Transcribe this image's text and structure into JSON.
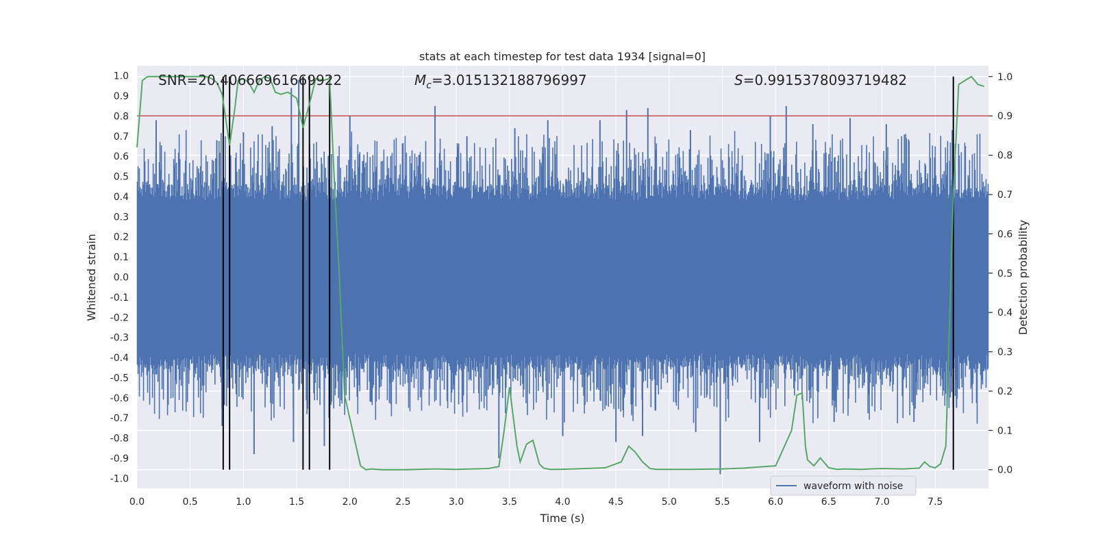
{
  "chart_data": {
    "type": "line",
    "title": "stats at each timestep for test data 1934 [signal=0]",
    "xlabel": "Time (s)",
    "ylabel_left": "Whitened strain",
    "ylabel_right": "Detection probability",
    "xlim": [
      0.0,
      8.0
    ],
    "ylim_left": [
      -1.05,
      1.05
    ],
    "ylim_right": [
      -0.0475,
      1.0275
    ],
    "x_ticks": [
      "0.0",
      "0.5",
      "1.0",
      "1.5",
      "2.0",
      "2.5",
      "3.0",
      "3.5",
      "4.0",
      "4.5",
      "5.0",
      "5.5",
      "6.0",
      "6.5",
      "7.0",
      "7.5"
    ],
    "x_tick_values": [
      0.0,
      0.5,
      1.0,
      1.5,
      2.0,
      2.5,
      3.0,
      3.5,
      4.0,
      4.5,
      5.0,
      5.5,
      6.0,
      6.5,
      7.0,
      7.5
    ],
    "y_left_ticks": [
      "1.0",
      "0.9",
      "0.8",
      "0.7",
      "0.6",
      "0.5",
      "0.4",
      "0.3",
      "0.2",
      "0.1",
      "0.0",
      "-0.1",
      "-0.2",
      "-0.3",
      "-0.4",
      "-0.5",
      "-0.6",
      "-0.7",
      "-0.8",
      "-0.9",
      "-1.0"
    ],
    "y_left_tick_values": [
      1.0,
      0.9,
      0.8,
      0.7,
      0.6,
      0.5,
      0.4,
      0.3,
      0.2,
      0.1,
      0.0,
      -0.1,
      -0.2,
      -0.3,
      -0.4,
      -0.5,
      -0.6,
      -0.7,
      -0.8,
      -0.9,
      -1.0
    ],
    "y_right_ticks": [
      "1.0",
      "0.9",
      "0.8",
      "0.7",
      "0.6",
      "0.5",
      "0.4",
      "0.3",
      "0.2",
      "0.1",
      "0.0"
    ],
    "y_right_tick_values": [
      1.0,
      0.9,
      0.8,
      0.7,
      0.6,
      0.5,
      0.4,
      0.3,
      0.2,
      0.1,
      0.0
    ],
    "grid": true,
    "annotations": {
      "snr": "SNR=20.40666961669922",
      "mc_symbol": "M",
      "mc_sub": "c",
      "mc_value": "=3.015132188796997",
      "s_symbol": "S",
      "s_value": "=0.9915378093719482"
    },
    "legend": {
      "entries": [
        "waveform with noise"
      ],
      "placement": "lower-right"
    },
    "threshold": {
      "value_right": 0.9,
      "color": "#c44e52"
    },
    "detection_markers_x": [
      0.81,
      0.87,
      1.56,
      1.62,
      1.81,
      7.67
    ],
    "waveform": {
      "color": "#4c72b0",
      "duration": 8.0,
      "core_amplitude": 0.38,
      "peaks": [
        {
          "t": 0.18,
          "v": 0.78
        },
        {
          "t": 0.46,
          "v": 0.58
        },
        {
          "t": 0.75,
          "v": 0.68
        },
        {
          "t": 0.8,
          "v": -0.74
        },
        {
          "t": 1.0,
          "v": 0.72
        },
        {
          "t": 1.1,
          "v": -0.88
        },
        {
          "t": 1.27,
          "v": 0.75
        },
        {
          "t": 1.45,
          "v": 0.94
        },
        {
          "t": 1.47,
          "v": -0.82
        },
        {
          "t": 1.52,
          "v": 0.98
        },
        {
          "t": 1.76,
          "v": -0.84
        },
        {
          "t": 2.0,
          "v": 0.8
        },
        {
          "t": 2.2,
          "v": -0.62
        },
        {
          "t": 2.8,
          "v": 0.85
        },
        {
          "t": 3.1,
          "v": 0.7
        },
        {
          "t": 3.4,
          "v": -0.9
        },
        {
          "t": 3.55,
          "v": 0.74
        },
        {
          "t": 3.86,
          "v": 0.78
        },
        {
          "t": 4.0,
          "v": -0.79
        },
        {
          "t": 4.35,
          "v": 0.78
        },
        {
          "t": 4.5,
          "v": -0.82
        },
        {
          "t": 4.6,
          "v": 0.83
        },
        {
          "t": 4.75,
          "v": -0.79
        },
        {
          "t": 4.8,
          "v": 0.84
        },
        {
          "t": 5.2,
          "v": 0.73
        },
        {
          "t": 5.25,
          "v": -0.77
        },
        {
          "t": 5.48,
          "v": -0.98
        },
        {
          "t": 5.85,
          "v": -0.82
        },
        {
          "t": 5.95,
          "v": 0.8
        },
        {
          "t": 6.1,
          "v": 0.85
        },
        {
          "t": 6.35,
          "v": 0.76
        },
        {
          "t": 6.55,
          "v": -0.72
        },
        {
          "t": 6.7,
          "v": 0.79
        },
        {
          "t": 7.04,
          "v": 0.76
        },
        {
          "t": 7.3,
          "v": -0.72
        },
        {
          "t": 7.66,
          "v": 0.73
        },
        {
          "t": 7.7,
          "v": -0.65
        }
      ]
    },
    "series": [
      {
        "name": "waveform with noise",
        "axis": "left"
      },
      {
        "axis": "right",
        "color": "#55a868",
        "x": [
          0.0,
          0.05,
          0.1,
          0.2,
          0.3,
          0.4,
          0.5,
          0.6,
          0.65,
          0.7,
          0.75,
          0.8,
          0.87,
          0.92,
          0.95,
          1.0,
          1.05,
          1.1,
          1.15,
          1.2,
          1.25,
          1.3,
          1.35,
          1.42,
          1.5,
          1.56,
          1.62,
          1.68,
          1.75,
          1.81,
          1.86,
          1.9,
          1.95,
          2.0,
          2.05,
          2.1,
          2.15,
          2.2,
          2.3,
          2.5,
          2.8,
          3.0,
          3.3,
          3.4,
          3.45,
          3.5,
          3.57,
          3.6,
          3.66,
          3.72,
          3.78,
          3.82,
          3.88,
          3.95,
          4.1,
          4.4,
          4.55,
          4.62,
          4.68,
          4.75,
          4.82,
          4.88,
          4.95,
          5.2,
          5.5,
          5.7,
          6.0,
          6.15,
          6.2,
          6.25,
          6.28,
          6.3,
          6.36,
          6.42,
          6.5,
          6.58,
          6.65,
          6.8,
          7.0,
          7.2,
          7.35,
          7.4,
          7.45,
          7.5,
          7.55,
          7.6,
          7.67,
          7.72,
          7.78,
          7.84,
          7.9,
          7.96
        ],
        "y": [
          0.82,
          0.99,
          1.0,
          1.0,
          1.0,
          1.0,
          1.0,
          1.0,
          1.0,
          0.995,
          0.985,
          0.955,
          0.825,
          0.92,
          0.99,
          0.995,
          0.985,
          0.96,
          0.99,
          1.0,
          0.995,
          0.96,
          0.955,
          0.96,
          0.945,
          0.87,
          0.93,
          0.995,
          0.99,
          0.995,
          0.7,
          0.5,
          0.19,
          0.13,
          0.07,
          0.01,
          0.0,
          0.002,
          0.0,
          0.0,
          0.002,
          0.001,
          0.003,
          0.008,
          0.1,
          0.21,
          0.06,
          0.02,
          0.065,
          0.075,
          0.015,
          0.004,
          0.001,
          0.001,
          0.002,
          0.005,
          0.02,
          0.06,
          0.045,
          0.02,
          0.003,
          0.001,
          0.001,
          0.001,
          0.002,
          0.004,
          0.01,
          0.1,
          0.19,
          0.195,
          0.06,
          0.025,
          0.01,
          0.03,
          0.005,
          0.001,
          0.002,
          0.001,
          0.003,
          0.002,
          0.004,
          0.02,
          0.008,
          0.005,
          0.015,
          0.06,
          0.7,
          0.98,
          0.99,
          1.0,
          0.98,
          0.975
        ]
      }
    ]
  }
}
